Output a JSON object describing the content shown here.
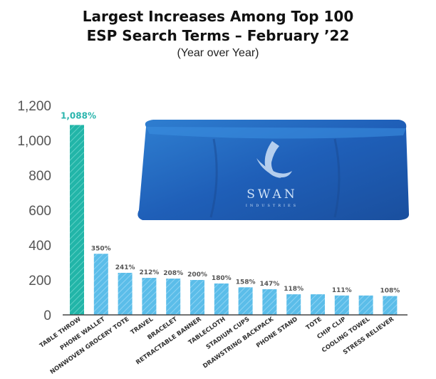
{
  "chart_data": {
    "type": "bar",
    "title_lines": [
      "Largest Increases Among Top 100",
      "ESP Search Terms – February ’22"
    ],
    "subtitle": "(Year over Year)",
    "xlabel": "",
    "ylabel": "",
    "ylim": [
      0,
      1200
    ],
    "yticks": [
      "0",
      "200",
      "400",
      "600",
      "800",
      "1,000",
      "1,200"
    ],
    "grid": false,
    "categories": [
      "TABLE THROW",
      "PHONE WALLET",
      "NONWOVEN GROCERY TOTE",
      "TRAVEL",
      "BRACELET",
      "RETRACTABLE BANNER",
      "TABLECLOTH",
      "STADIUM CUPS",
      "DRAWSTRING BACKPACK",
      "PHONE STAND",
      "TOTE",
      "CHIP CLIP",
      "COOLING TOWEL",
      "STRESS RELIEVER"
    ],
    "values": [
      1088,
      350,
      241,
      212,
      208,
      200,
      180,
      158,
      147,
      118,
      118,
      111,
      111,
      108
    ],
    "value_labels": [
      "1,088%",
      "350%",
      "241%",
      "212%",
      "208%",
      "200%",
      "180%",
      "158%",
      "147%",
      "118%",
      "",
      "111%",
      "",
      "108%"
    ],
    "highlight_index": 0,
    "colors": {
      "highlight_bar": "#22b5a8",
      "bar": "#5bbde9",
      "highlight_label": "#2ab5ad",
      "axis": "#444444"
    }
  },
  "product_image": {
    "logo_icon": "swan-icon",
    "brand_name": "SWAN",
    "brand_sub": "INDUSTRIES"
  }
}
